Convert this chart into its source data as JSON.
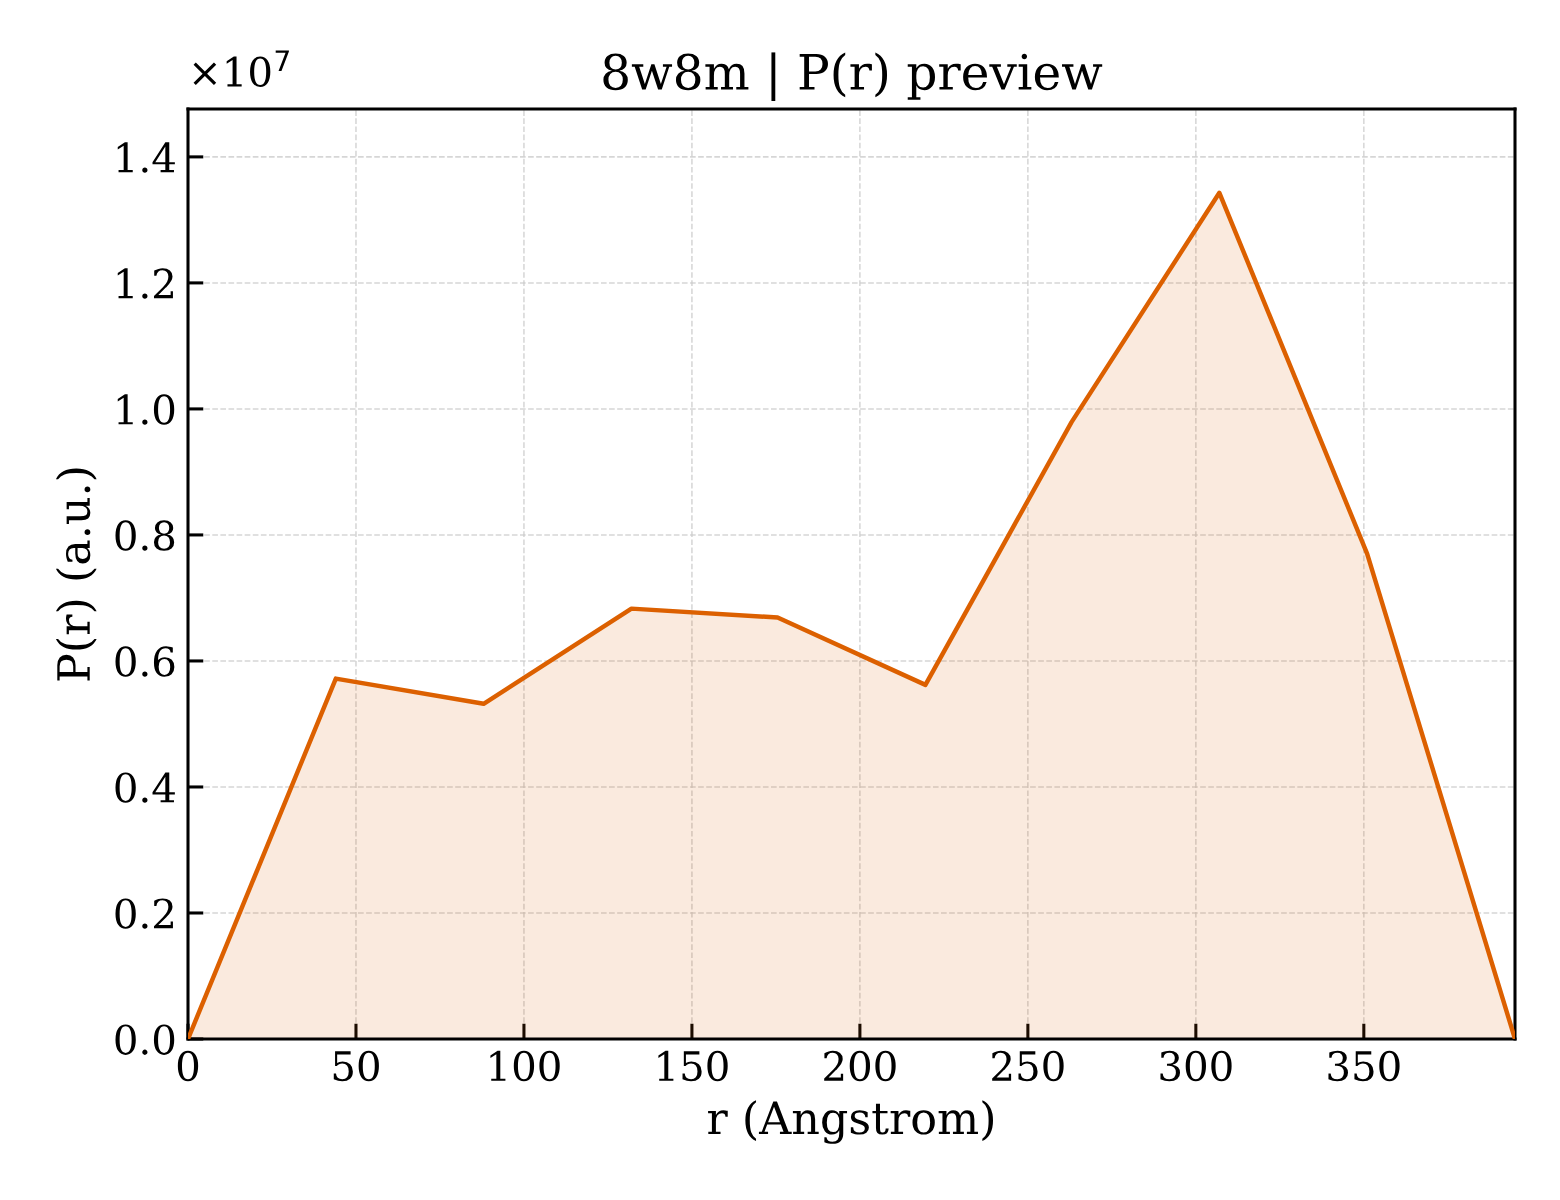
{
  "chart_data": {
    "type": "area",
    "title": "8w8m | P(r) preview",
    "xlabel": "r (Angstrom)",
    "ylabel": "P(r) (a.u.)",
    "x": [
      0,
      44,
      88,
      132,
      175.5,
      219.5,
      263,
      307,
      351,
      395
    ],
    "series": [
      {
        "color": "#dc6000",
        "values": [
          0,
          0.572,
          0.532,
          0.683,
          0.669,
          0.562,
          0.979,
          1.343,
          0.77,
          0
        ]
      }
    ],
    "xlim": [
      0,
      395
    ],
    "xticks": [
      0,
      50,
      100,
      150,
      200,
      250,
      300,
      350
    ],
    "ylim": [
      0,
      1.476
    ],
    "yticks": [
      {
        "value": 0,
        "label": "0.0"
      },
      0.2,
      0.4,
      0.6,
      0.8,
      {
        "value": 1,
        "label": "1.0"
      },
      1.2,
      1.4
    ],
    "grid": true,
    "annotations": [
      "×10$^{7}$"
    ]
  }
}
